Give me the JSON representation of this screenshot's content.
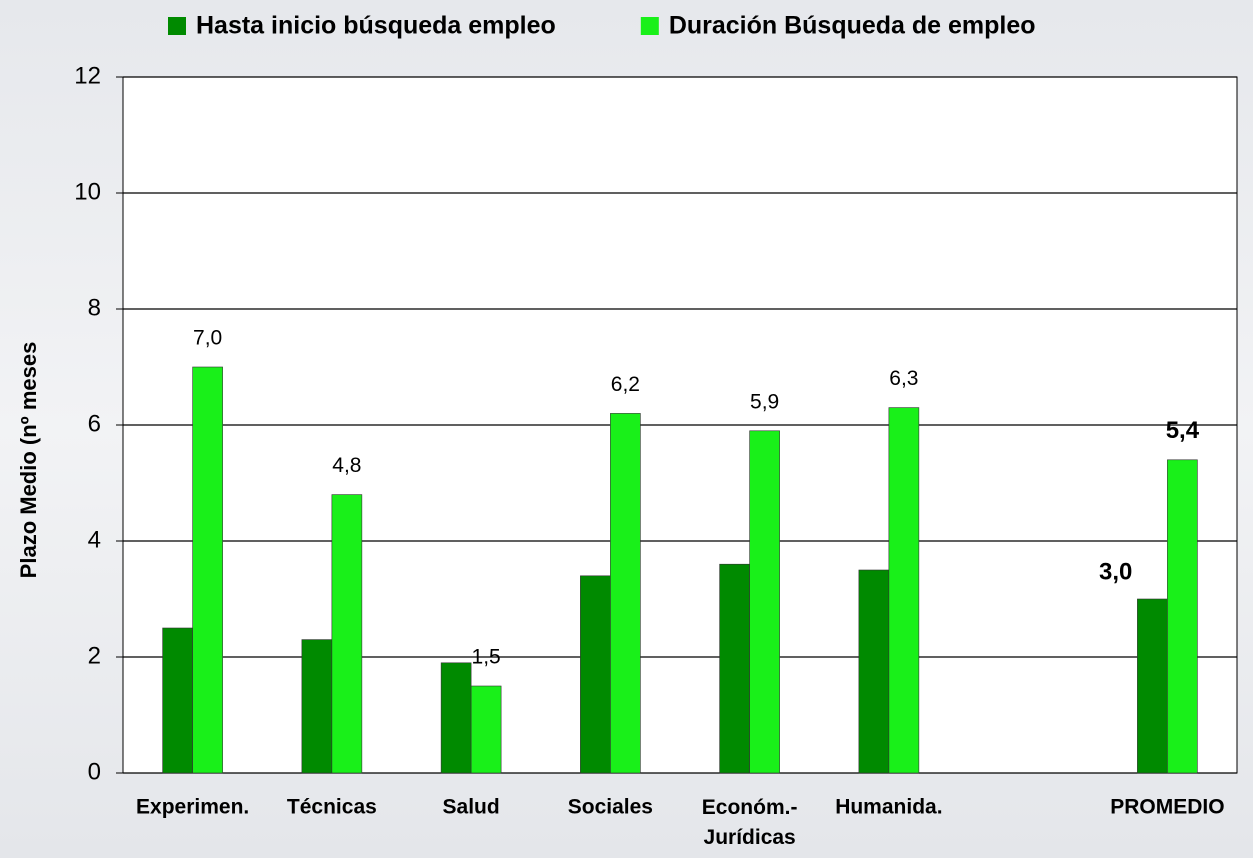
{
  "chart_data": {
    "type": "bar",
    "y_label": "Plazo Medio (nº meses",
    "categories": [
      "Experimen.",
      "Técnicas",
      "Salud",
      "Sociales",
      "Económ.-\nJurídicas",
      "Humanida.",
      null,
      "PROMEDIO"
    ],
    "series": [
      {
        "name": "Hasta inicio búsqueda empleo",
        "color": "#008a00",
        "values": [
          2.5,
          2.3,
          1.9,
          3.4,
          3.6,
          3.5,
          null,
          3.0
        ],
        "value_labels": [
          null,
          null,
          null,
          null,
          null,
          null,
          null,
          "3,0"
        ]
      },
      {
        "name": "Duración Búsqueda de empleo",
        "color": "#19f019",
        "values": [
          7.0,
          4.8,
          1.5,
          6.2,
          5.9,
          6.3,
          null,
          5.4
        ],
        "value_labels": [
          "7,0",
          "4,8",
          "1,5",
          "6,2",
          "5,9",
          "6,3",
          null,
          "5,4"
        ]
      }
    ],
    "ylim": [
      0,
      12
    ],
    "yticks": [
      0,
      2,
      4,
      6,
      8,
      10,
      12
    ],
    "grid": true,
    "legend": "top"
  }
}
